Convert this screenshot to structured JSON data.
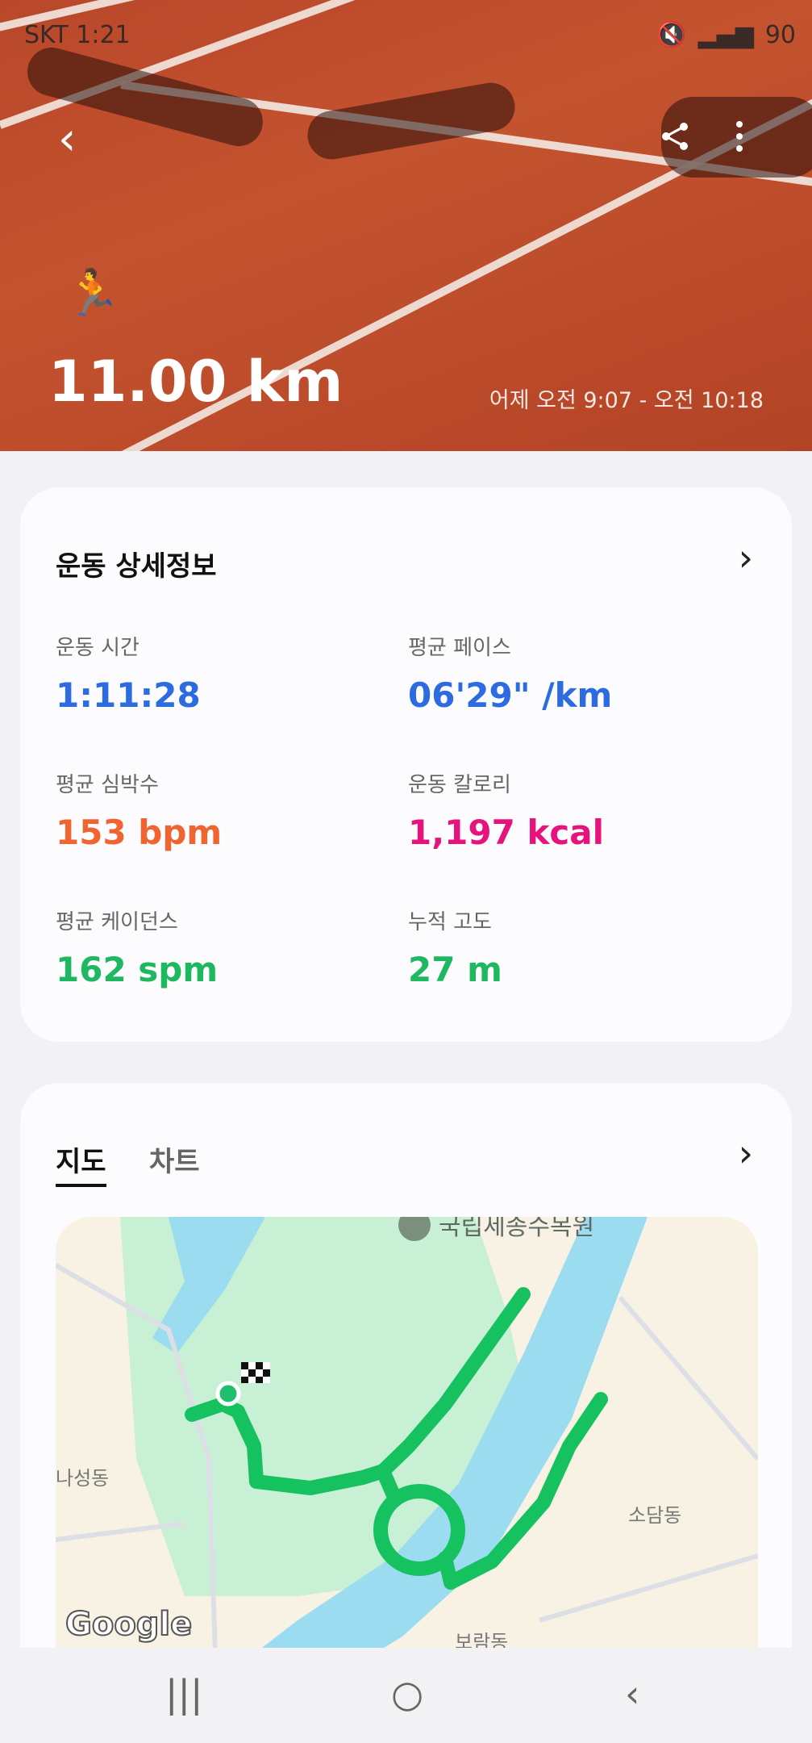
{
  "status_bar": {
    "carrier_time": "SKT 1:21",
    "battery": "90"
  },
  "hero": {
    "distance": "11.00 km",
    "time_range": "어제 오전 9:07 - 오전 10:18",
    "icons": [
      "back-icon",
      "share-icon",
      "more-icon",
      "running-icon"
    ]
  },
  "details": {
    "title": "운동 상세정보",
    "stats": [
      {
        "label": "운동 시간",
        "value": "1:11:28",
        "color": "#2d6be0"
      },
      {
        "label": "평균 페이스",
        "value": "06'29\" /km",
        "color": "#2d6be0"
      },
      {
        "label": "평균 심박수",
        "value": "153 bpm",
        "color": "#f0652f"
      },
      {
        "label": "운동 칼로리",
        "value": "1,197 kcal",
        "color": "#e5137b"
      },
      {
        "label": "평균 케이던스",
        "value": "162 spm",
        "color": "#1db860"
      },
      {
        "label": "누적 고도",
        "value": "27 m",
        "color": "#1db860"
      }
    ]
  },
  "map_section": {
    "tabs": [
      {
        "label": "지도",
        "active": true
      },
      {
        "label": "차트",
        "active": false
      }
    ],
    "labels": {
      "poi": "국립세종수목원",
      "area1": "나성동",
      "area2": "소담동",
      "area3": "보람동",
      "logo": "Google"
    },
    "route_color": "#16c25f"
  },
  "nav": {
    "recents": "|||",
    "home": "○",
    "back": "‹"
  }
}
